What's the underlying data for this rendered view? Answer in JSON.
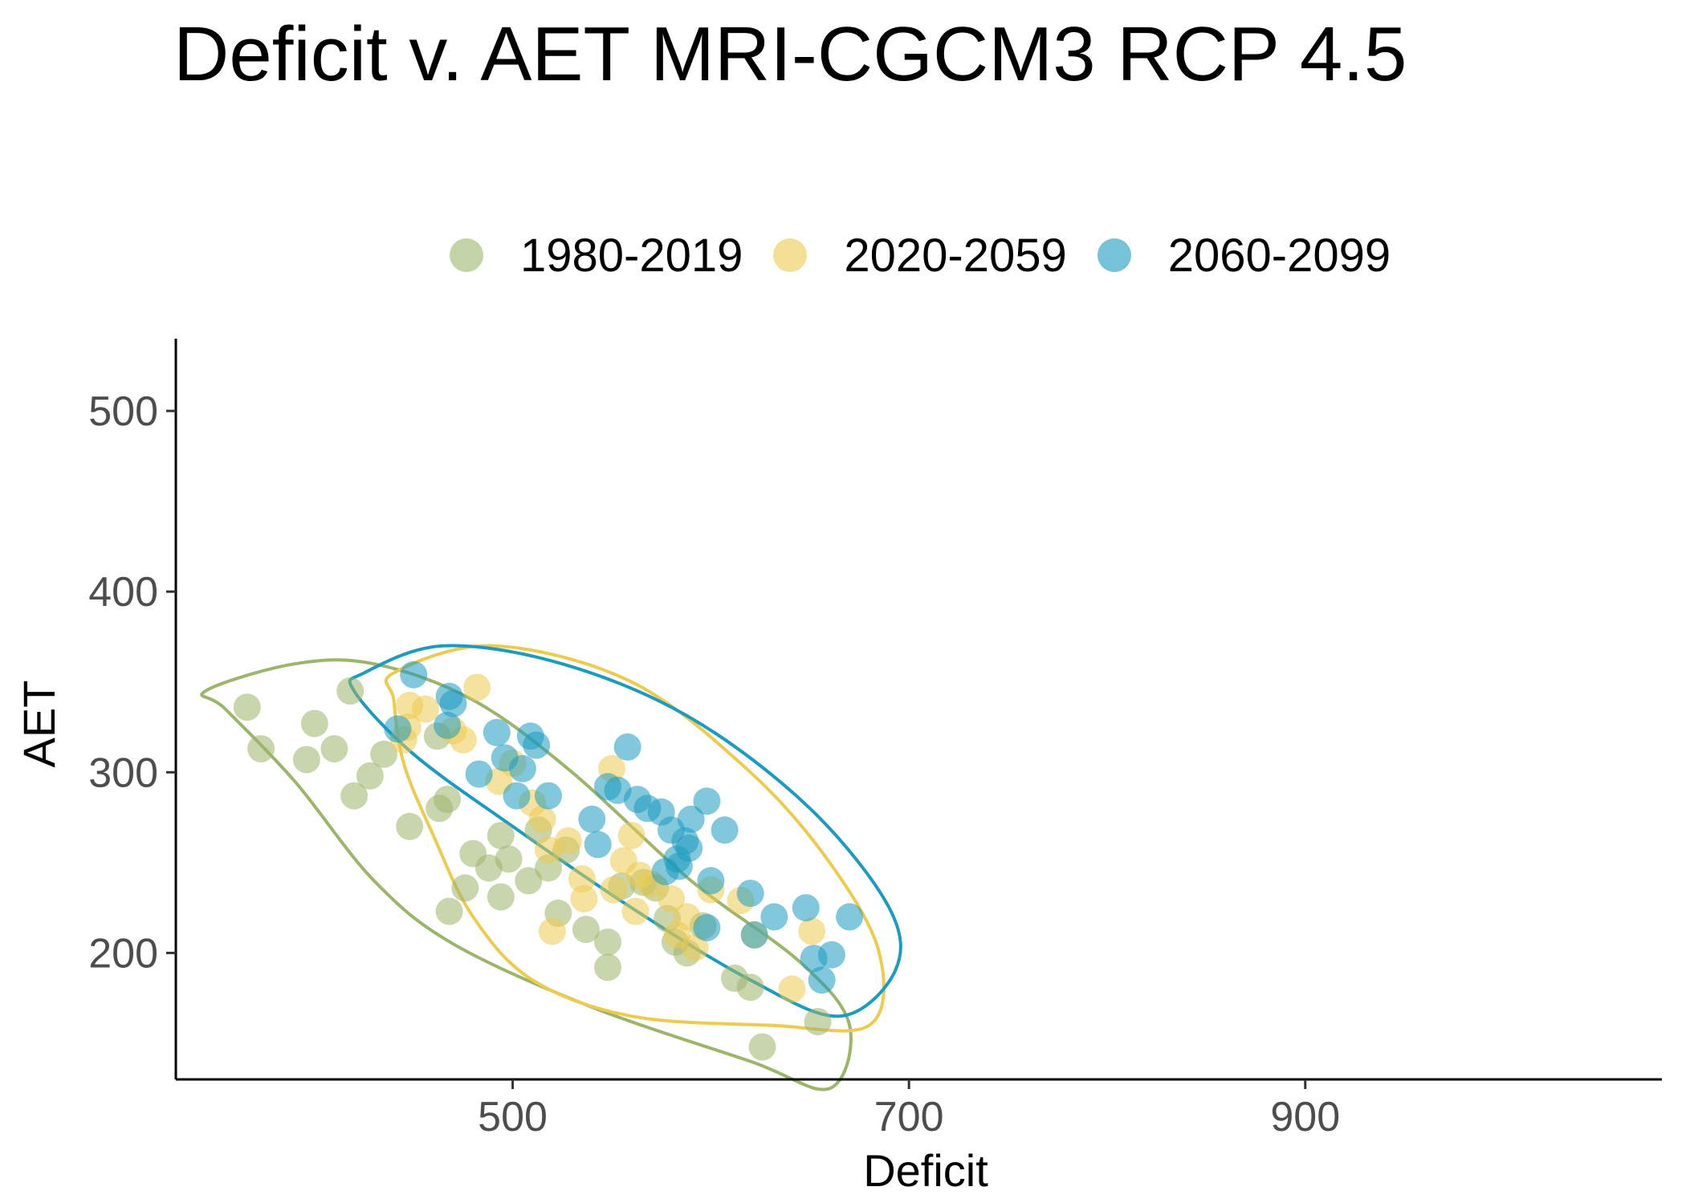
{
  "chart_data": {
    "type": "scatter",
    "title": "Deficit v. AET MRI-CGCM3 RCP 4.5",
    "xlabel": "Deficit",
    "ylabel": "AET",
    "xlim": [
      330,
      1080
    ],
    "ylim": [
      130,
      540
    ],
    "x_ticks": [
      500,
      700,
      900
    ],
    "y_ticks": [
      200,
      300,
      400,
      500
    ],
    "grid": false,
    "legend_position": "top",
    "series": [
      {
        "name": "1980-2019",
        "color": "#9cb56a",
        "points": [
          [
            366,
            336
          ],
          [
            373,
            313
          ],
          [
            400,
            327
          ],
          [
            396,
            307
          ],
          [
            410,
            313
          ],
          [
            418,
            345
          ],
          [
            420,
            287
          ],
          [
            428,
            298
          ],
          [
            435,
            310
          ],
          [
            448,
            270
          ],
          [
            462,
            320
          ],
          [
            463,
            280
          ],
          [
            467,
            285
          ],
          [
            468,
            223
          ],
          [
            476,
            236
          ],
          [
            480,
            255
          ],
          [
            488,
            247
          ],
          [
            494,
            265
          ],
          [
            494,
            231
          ],
          [
            498,
            252
          ],
          [
            508,
            240
          ],
          [
            513,
            268
          ],
          [
            518,
            247
          ],
          [
            523,
            222
          ],
          [
            527,
            257
          ],
          [
            537,
            213
          ],
          [
            548,
            206
          ],
          [
            548,
            192
          ],
          [
            555,
            237
          ],
          [
            566,
            239
          ],
          [
            572,
            236
          ],
          [
            578,
            219
          ],
          [
            582,
            206
          ],
          [
            588,
            200
          ],
          [
            596,
            215
          ],
          [
            612,
            186
          ],
          [
            620,
            181
          ],
          [
            626,
            148
          ],
          [
            654,
            162
          ]
        ],
        "ellipse": [
          [
            345,
            345
          ],
          [
            390,
            360
          ],
          [
            430,
            360
          ],
          [
            480,
            340
          ],
          [
            530,
            300
          ],
          [
            590,
            240
          ],
          [
            645,
            195
          ],
          [
            670,
            160
          ],
          [
            660,
            125
          ],
          [
            620,
            140
          ],
          [
            540,
            170
          ],
          [
            470,
            205
          ],
          [
            430,
            240
          ],
          [
            390,
            295
          ],
          [
            355,
            335
          ],
          [
            345,
            345
          ]
        ]
      },
      {
        "name": "2020-2059",
        "color": "#eccb4e",
        "points": [
          [
            448,
            337
          ],
          [
            447,
            325
          ],
          [
            445,
            318
          ],
          [
            456,
            335
          ],
          [
            470,
            323
          ],
          [
            475,
            318
          ],
          [
            482,
            347
          ],
          [
            493,
            295
          ],
          [
            500,
            305
          ],
          [
            510,
            283
          ],
          [
            515,
            274
          ],
          [
            518,
            257
          ],
          [
            520,
            212
          ],
          [
            528,
            262
          ],
          [
            535,
            241
          ],
          [
            536,
            230
          ],
          [
            550,
            302
          ],
          [
            551,
            235
          ],
          [
            556,
            251
          ],
          [
            560,
            265
          ],
          [
            562,
            223
          ],
          [
            564,
            243
          ],
          [
            570,
            238
          ],
          [
            580,
            230
          ],
          [
            583,
            210
          ],
          [
            588,
            220
          ],
          [
            592,
            203
          ],
          [
            600,
            235
          ],
          [
            615,
            229
          ],
          [
            622,
            210
          ],
          [
            641,
            180
          ],
          [
            651,
            212
          ]
        ],
        "ellipse": [
          [
            440,
            355
          ],
          [
            490,
            370
          ],
          [
            560,
            350
          ],
          [
            620,
            300
          ],
          [
            660,
            250
          ],
          [
            685,
            200
          ],
          [
            680,
            160
          ],
          [
            630,
            160
          ],
          [
            560,
            165
          ],
          [
            510,
            185
          ],
          [
            480,
            220
          ],
          [
            460,
            265
          ],
          [
            445,
            305
          ],
          [
            440,
            340
          ],
          [
            440,
            355
          ]
        ]
      },
      {
        "name": "2060-2099",
        "color": "#1b9bc0",
        "points": [
          [
            450,
            354
          ],
          [
            442,
            324
          ],
          [
            467,
            326
          ],
          [
            470,
            338
          ],
          [
            468,
            342
          ],
          [
            483,
            299
          ],
          [
            492,
            322
          ],
          [
            496,
            308
          ],
          [
            505,
            302
          ],
          [
            502,
            287
          ],
          [
            509,
            320
          ],
          [
            512,
            315
          ],
          [
            518,
            287
          ],
          [
            540,
            274
          ],
          [
            543,
            260
          ],
          [
            548,
            292
          ],
          [
            553,
            290
          ],
          [
            558,
            314
          ],
          [
            563,
            285
          ],
          [
            568,
            280
          ],
          [
            575,
            278
          ],
          [
            580,
            268
          ],
          [
            587,
            262
          ],
          [
            583,
            252
          ],
          [
            577,
            245
          ],
          [
            584,
            248
          ],
          [
            589,
            258
          ],
          [
            590,
            274
          ],
          [
            598,
            284
          ],
          [
            600,
            240
          ],
          [
            598,
            214
          ],
          [
            607,
            268
          ],
          [
            620,
            233
          ],
          [
            622,
            210
          ],
          [
            632,
            220
          ],
          [
            648,
            225
          ],
          [
            652,
            197
          ],
          [
            656,
            185
          ],
          [
            661,
            199
          ],
          [
            670,
            220
          ]
        ],
        "ellipse": [
          [
            425,
            355
          ],
          [
            465,
            370
          ],
          [
            525,
            360
          ],
          [
            590,
            330
          ],
          [
            650,
            280
          ],
          [
            690,
            225
          ],
          [
            693,
            190
          ],
          [
            665,
            165
          ],
          [
            620,
            185
          ],
          [
            560,
            225
          ],
          [
            500,
            270
          ],
          [
            450,
            310
          ],
          [
            420,
            345
          ],
          [
            425,
            355
          ]
        ]
      }
    ]
  }
}
